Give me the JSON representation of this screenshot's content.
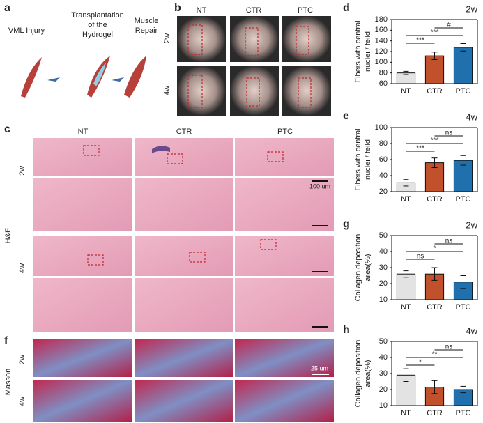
{
  "panel_a": {
    "label": "a",
    "steps": [
      [
        "VML Injury"
      ],
      [
        "Transplantation",
        "of the",
        "Hydrogel"
      ],
      [
        "Muscle",
        "Repair"
      ]
    ]
  },
  "panel_b": {
    "label": "b",
    "columns": [
      "NT",
      "CTR",
      "PTC"
    ],
    "rows": [
      "2w",
      "4w"
    ]
  },
  "panel_c": {
    "label": "c",
    "columns": [
      "NT",
      "CTR",
      "PTC"
    ],
    "rows": [
      "2w",
      "4w"
    ],
    "stain": "H&E",
    "scale_bar": "100 um"
  },
  "panel_f": {
    "label": "f",
    "rows": [
      "2w",
      "4w"
    ],
    "stain": "Masson",
    "scale_bar": "25 um"
  },
  "chart_data": [
    {
      "type": "bar",
      "panel": "d",
      "subtitle": "2w",
      "ylabel": [
        "Fibers with central",
        "nuclei / feild"
      ],
      "categories": [
        "NT",
        "CTR",
        "PTC"
      ],
      "values": [
        80,
        112,
        128
      ],
      "errors": [
        3,
        7,
        7
      ],
      "colors": [
        "#e3e3e3",
        "#c1502c",
        "#1f70ad"
      ],
      "ylim": [
        60,
        180
      ],
      "yticks": [
        60,
        80,
        100,
        120,
        140,
        160,
        180
      ],
      "annotations": [
        {
          "text": "***",
          "from": "NT",
          "to": "CTR"
        },
        {
          "text": "***",
          "from": "NT",
          "to": "PTC"
        },
        {
          "text": "#",
          "from": "CTR",
          "to": "PTC"
        }
      ]
    },
    {
      "type": "bar",
      "panel": "e",
      "subtitle": "4w",
      "ylabel": [
        "Fibers with central",
        "nuclei / feild"
      ],
      "categories": [
        "NT",
        "CTR",
        "PTC"
      ],
      "values": [
        31,
        56,
        59
      ],
      "errors": [
        4,
        6,
        6
      ],
      "colors": [
        "#e3e3e3",
        "#c1502c",
        "#1f70ad"
      ],
      "ylim": [
        20,
        100
      ],
      "yticks": [
        20,
        40,
        60,
        80,
        100
      ],
      "annotations": [
        {
          "text": "***",
          "from": "NT",
          "to": "CTR"
        },
        {
          "text": "***",
          "from": "NT",
          "to": "PTC"
        },
        {
          "text": "ns",
          "from": "CTR",
          "to": "PTC"
        }
      ]
    },
    {
      "type": "bar",
      "panel": "g",
      "subtitle": "2w",
      "ylabel": [
        "Collagen deposition",
        "area(%)"
      ],
      "categories": [
        "NT",
        "CTR",
        "PTC"
      ],
      "values": [
        26,
        26,
        21
      ],
      "errors": [
        2,
        4,
        4
      ],
      "colors": [
        "#e3e3e3",
        "#c1502c",
        "#1f70ad"
      ],
      "ylim": [
        10,
        50
      ],
      "yticks": [
        10,
        20,
        30,
        40,
        50
      ],
      "annotations": [
        {
          "text": "ns",
          "from": "NT",
          "to": "CTR"
        },
        {
          "text": "*",
          "from": "NT",
          "to": "PTC"
        },
        {
          "text": "ns",
          "from": "CTR",
          "to": "PTC"
        }
      ]
    },
    {
      "type": "bar",
      "panel": "h",
      "subtitle": "4w",
      "ylabel": [
        "Collagen deposition",
        "area(%)"
      ],
      "categories": [
        "NT",
        "CTR",
        "PTC"
      ],
      "values": [
        29,
        21.5,
        20
      ],
      "errors": [
        4,
        4,
        2
      ],
      "colors": [
        "#e3e3e3",
        "#c1502c",
        "#1f70ad"
      ],
      "ylim": [
        10,
        50
      ],
      "yticks": [
        10,
        20,
        30,
        40,
        50
      ],
      "annotations": [
        {
          "text": "*",
          "from": "NT",
          "to": "CTR"
        },
        {
          "text": "**",
          "from": "NT",
          "to": "PTC"
        },
        {
          "text": "ns",
          "from": "CTR",
          "to": "PTC"
        }
      ]
    }
  ]
}
